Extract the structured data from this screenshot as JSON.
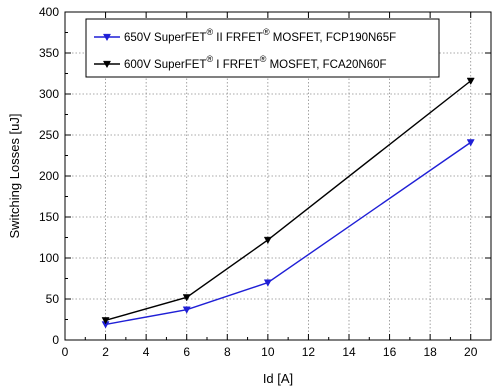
{
  "chart_data": {
    "type": "line",
    "title": "",
    "xlabel": "Id [A]",
    "ylabel": "Switching Losses [uJ]",
    "xlim": [
      0,
      21
    ],
    "ylim": [
      0,
      400
    ],
    "xticks": [
      0,
      2,
      4,
      6,
      8,
      10,
      12,
      14,
      16,
      18,
      20
    ],
    "yticks": [
      0,
      50,
      100,
      150,
      200,
      250,
      300,
      350,
      400
    ],
    "grid": true,
    "legend_position": "top-left",
    "series": [
      {
        "name": "650V SuperFET® II FRFET® MOSFET, FCP190N65F",
        "legend_parts": [
          "650V SuperFET",
          "®",
          " II FRFET",
          "®",
          " MOSFET, FCP190N65F"
        ],
        "color": "#1f1fd6",
        "marker": "triangle-down",
        "x": [
          2,
          6,
          10,
          20
        ],
        "y": [
          19,
          37,
          70,
          241
        ]
      },
      {
        "name": "600V SuperFET® I FRFET® MOSFET, FCA20N60F",
        "legend_parts": [
          "600V SuperFET",
          "®",
          " I FRFET",
          "®",
          " MOSFET, FCA20N60F"
        ],
        "color": "#000000",
        "marker": "triangle-down",
        "x": [
          2,
          6,
          10,
          20
        ],
        "y": [
          24,
          52,
          122,
          316
        ]
      }
    ]
  }
}
